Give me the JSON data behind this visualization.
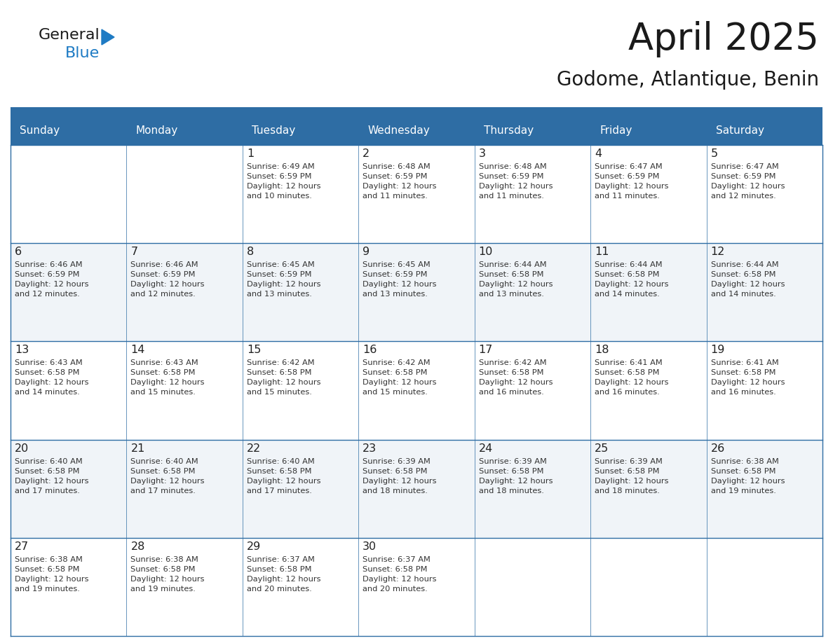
{
  "title": "April 2025",
  "subtitle": "Godome, Atlantique, Benin",
  "days_of_week": [
    "Sunday",
    "Monday",
    "Tuesday",
    "Wednesday",
    "Thursday",
    "Friday",
    "Saturday"
  ],
  "header_bg": "#2E6DA4",
  "header_text": "#FFFFFF",
  "row_bg_even": "#F0F4F8",
  "row_bg_odd": "#FFFFFF",
  "day_number_color": "#222222",
  "text_color": "#333333",
  "line_color": "#2E6DA4",
  "logo_black": "#1a1a1a",
  "logo_blue": "#1E7BC4",
  "triangle_color": "#1E7BC4",
  "weeks": [
    [
      {
        "day": "",
        "sunrise": "",
        "sunset": "",
        "daylight": ""
      },
      {
        "day": "",
        "sunrise": "",
        "sunset": "",
        "daylight": ""
      },
      {
        "day": "1",
        "sunrise": "Sunrise: 6:49 AM",
        "sunset": "Sunset: 6:59 PM",
        "daylight": "Daylight: 12 hours\nand 10 minutes."
      },
      {
        "day": "2",
        "sunrise": "Sunrise: 6:48 AM",
        "sunset": "Sunset: 6:59 PM",
        "daylight": "Daylight: 12 hours\nand 11 minutes."
      },
      {
        "day": "3",
        "sunrise": "Sunrise: 6:48 AM",
        "sunset": "Sunset: 6:59 PM",
        "daylight": "Daylight: 12 hours\nand 11 minutes."
      },
      {
        "day": "4",
        "sunrise": "Sunrise: 6:47 AM",
        "sunset": "Sunset: 6:59 PM",
        "daylight": "Daylight: 12 hours\nand 11 minutes."
      },
      {
        "day": "5",
        "sunrise": "Sunrise: 6:47 AM",
        "sunset": "Sunset: 6:59 PM",
        "daylight": "Daylight: 12 hours\nand 12 minutes."
      }
    ],
    [
      {
        "day": "6",
        "sunrise": "Sunrise: 6:46 AM",
        "sunset": "Sunset: 6:59 PM",
        "daylight": "Daylight: 12 hours\nand 12 minutes."
      },
      {
        "day": "7",
        "sunrise": "Sunrise: 6:46 AM",
        "sunset": "Sunset: 6:59 PM",
        "daylight": "Daylight: 12 hours\nand 12 minutes."
      },
      {
        "day": "8",
        "sunrise": "Sunrise: 6:45 AM",
        "sunset": "Sunset: 6:59 PM",
        "daylight": "Daylight: 12 hours\nand 13 minutes."
      },
      {
        "day": "9",
        "sunrise": "Sunrise: 6:45 AM",
        "sunset": "Sunset: 6:59 PM",
        "daylight": "Daylight: 12 hours\nand 13 minutes."
      },
      {
        "day": "10",
        "sunrise": "Sunrise: 6:44 AM",
        "sunset": "Sunset: 6:58 PM",
        "daylight": "Daylight: 12 hours\nand 13 minutes."
      },
      {
        "day": "11",
        "sunrise": "Sunrise: 6:44 AM",
        "sunset": "Sunset: 6:58 PM",
        "daylight": "Daylight: 12 hours\nand 14 minutes."
      },
      {
        "day": "12",
        "sunrise": "Sunrise: 6:44 AM",
        "sunset": "Sunset: 6:58 PM",
        "daylight": "Daylight: 12 hours\nand 14 minutes."
      }
    ],
    [
      {
        "day": "13",
        "sunrise": "Sunrise: 6:43 AM",
        "sunset": "Sunset: 6:58 PM",
        "daylight": "Daylight: 12 hours\nand 14 minutes."
      },
      {
        "day": "14",
        "sunrise": "Sunrise: 6:43 AM",
        "sunset": "Sunset: 6:58 PM",
        "daylight": "Daylight: 12 hours\nand 15 minutes."
      },
      {
        "day": "15",
        "sunrise": "Sunrise: 6:42 AM",
        "sunset": "Sunset: 6:58 PM",
        "daylight": "Daylight: 12 hours\nand 15 minutes."
      },
      {
        "day": "16",
        "sunrise": "Sunrise: 6:42 AM",
        "sunset": "Sunset: 6:58 PM",
        "daylight": "Daylight: 12 hours\nand 15 minutes."
      },
      {
        "day": "17",
        "sunrise": "Sunrise: 6:42 AM",
        "sunset": "Sunset: 6:58 PM",
        "daylight": "Daylight: 12 hours\nand 16 minutes."
      },
      {
        "day": "18",
        "sunrise": "Sunrise: 6:41 AM",
        "sunset": "Sunset: 6:58 PM",
        "daylight": "Daylight: 12 hours\nand 16 minutes."
      },
      {
        "day": "19",
        "sunrise": "Sunrise: 6:41 AM",
        "sunset": "Sunset: 6:58 PM",
        "daylight": "Daylight: 12 hours\nand 16 minutes."
      }
    ],
    [
      {
        "day": "20",
        "sunrise": "Sunrise: 6:40 AM",
        "sunset": "Sunset: 6:58 PM",
        "daylight": "Daylight: 12 hours\nand 17 minutes."
      },
      {
        "day": "21",
        "sunrise": "Sunrise: 6:40 AM",
        "sunset": "Sunset: 6:58 PM",
        "daylight": "Daylight: 12 hours\nand 17 minutes."
      },
      {
        "day": "22",
        "sunrise": "Sunrise: 6:40 AM",
        "sunset": "Sunset: 6:58 PM",
        "daylight": "Daylight: 12 hours\nand 17 minutes."
      },
      {
        "day": "23",
        "sunrise": "Sunrise: 6:39 AM",
        "sunset": "Sunset: 6:58 PM",
        "daylight": "Daylight: 12 hours\nand 18 minutes."
      },
      {
        "day": "24",
        "sunrise": "Sunrise: 6:39 AM",
        "sunset": "Sunset: 6:58 PM",
        "daylight": "Daylight: 12 hours\nand 18 minutes."
      },
      {
        "day": "25",
        "sunrise": "Sunrise: 6:39 AM",
        "sunset": "Sunset: 6:58 PM",
        "daylight": "Daylight: 12 hours\nand 18 minutes."
      },
      {
        "day": "26",
        "sunrise": "Sunrise: 6:38 AM",
        "sunset": "Sunset: 6:58 PM",
        "daylight": "Daylight: 12 hours\nand 19 minutes."
      }
    ],
    [
      {
        "day": "27",
        "sunrise": "Sunrise: 6:38 AM",
        "sunset": "Sunset: 6:58 PM",
        "daylight": "Daylight: 12 hours\nand 19 minutes."
      },
      {
        "day": "28",
        "sunrise": "Sunrise: 6:38 AM",
        "sunset": "Sunset: 6:58 PM",
        "daylight": "Daylight: 12 hours\nand 19 minutes."
      },
      {
        "day": "29",
        "sunrise": "Sunrise: 6:37 AM",
        "sunset": "Sunset: 6:58 PM",
        "daylight": "Daylight: 12 hours\nand 20 minutes."
      },
      {
        "day": "30",
        "sunrise": "Sunrise: 6:37 AM",
        "sunset": "Sunset: 6:58 PM",
        "daylight": "Daylight: 12 hours\nand 20 minutes."
      },
      {
        "day": "",
        "sunrise": "",
        "sunset": "",
        "daylight": ""
      },
      {
        "day": "",
        "sunrise": "",
        "sunset": "",
        "daylight": ""
      },
      {
        "day": "",
        "sunrise": "",
        "sunset": "",
        "daylight": ""
      }
    ]
  ]
}
